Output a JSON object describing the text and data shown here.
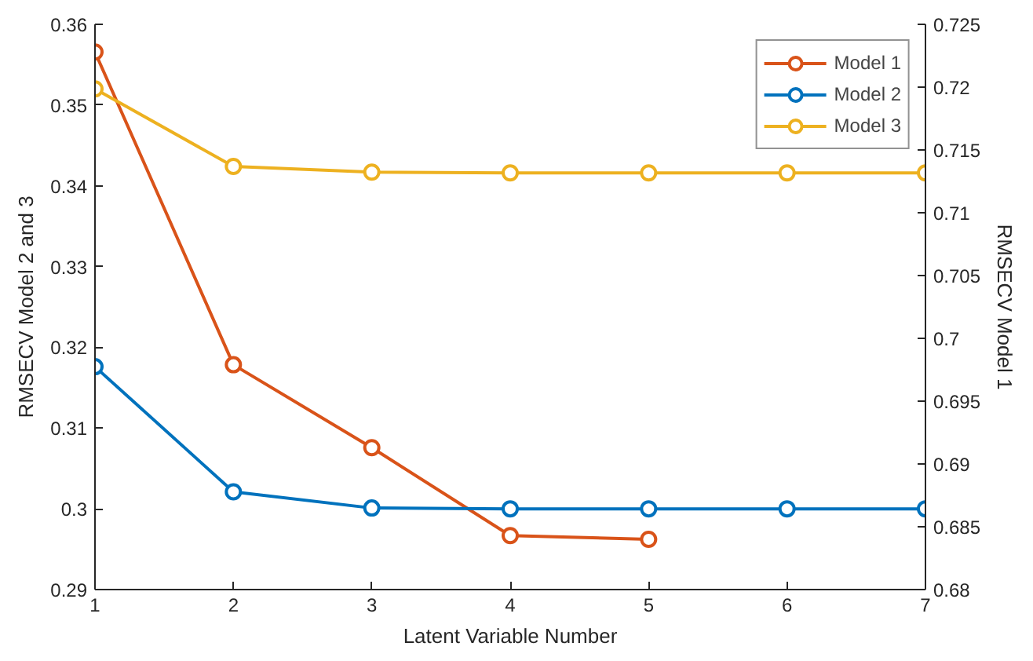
{
  "chart_data": {
    "type": "line",
    "xlabel": "Latent Variable Number",
    "ylabel": "RMSECV Model 2 and 3",
    "y2label": "RMSECV Model 1",
    "x": [
      1,
      2,
      3,
      4,
      5,
      6,
      7
    ],
    "xlim": [
      1,
      7
    ],
    "xticks": [
      1,
      2,
      3,
      4,
      5,
      6,
      7
    ],
    "ylim": [
      0.29,
      0.36
    ],
    "yticks": [
      0.29,
      0.3,
      0.31,
      0.32,
      0.33,
      0.34,
      0.35,
      0.36
    ],
    "y2lim": [
      0.68,
      0.725
    ],
    "y2ticks": [
      0.68,
      0.685,
      0.69,
      0.695,
      0.7,
      0.705,
      0.71,
      0.715,
      0.72,
      0.725
    ],
    "marker": "circle",
    "line_style": "solid",
    "grid": false,
    "legend": "top right",
    "series": [
      {
        "name": "Model 1",
        "color": "#d95319",
        "axis": "y2",
        "x": [
          1,
          2,
          3,
          4,
          5
        ],
        "values": [
          0.7228,
          0.6979,
          0.6913,
          0.6843,
          0.684
        ]
      },
      {
        "name": "Model 2",
        "color": "#0072bd",
        "values": [
          0.3176,
          0.3021,
          0.3001,
          0.3,
          0.3,
          0.3,
          0.3
        ]
      },
      {
        "name": "Model 3",
        "color": "#edb120",
        "values": [
          0.352,
          0.3424,
          0.3417,
          0.3416,
          0.3416,
          0.3416,
          0.3416
        ]
      }
    ]
  }
}
